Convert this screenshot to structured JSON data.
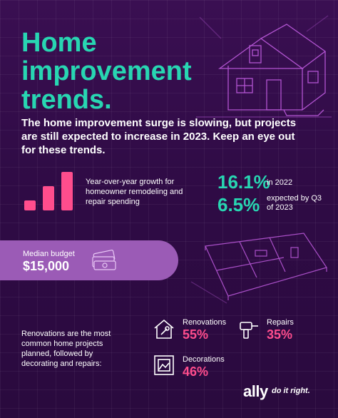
{
  "title_line1": "Home",
  "title_line2": "improvement",
  "title_line3": "trends.",
  "intro": "The home improvement surge is slowing, but projects are still expected to increase in 2023. Keep an eye out for these trends.",
  "growth": {
    "description": "Year-over-year growth for homeowner remodeling and repair spending",
    "stat1": {
      "value": "16.1%",
      "note": "in 2022"
    },
    "stat2": {
      "value": "6.5%",
      "note": "expected by Q3 of 2023"
    }
  },
  "budget": {
    "label": "Median budget",
    "value": "$15,000"
  },
  "projects": {
    "description": "Renovations are the most common home projects planned, followed by decorating and repairs:",
    "renovations": {
      "label": "Renovations",
      "value": "55%",
      "icon": "house-wrench-icon"
    },
    "repairs": {
      "label": "Repairs",
      "value": "35%",
      "icon": "drill-icon"
    },
    "decorations": {
      "label": "Decorations",
      "value": "46%",
      "icon": "picture-frame-icon"
    }
  },
  "brand": {
    "name": "ally",
    "tagline": "do it right."
  },
  "colors": {
    "accent_teal": "#28d6b2",
    "accent_pink": "#ff4d8d",
    "lavender": "#9b5bb6",
    "background": "#2a0a3e"
  }
}
